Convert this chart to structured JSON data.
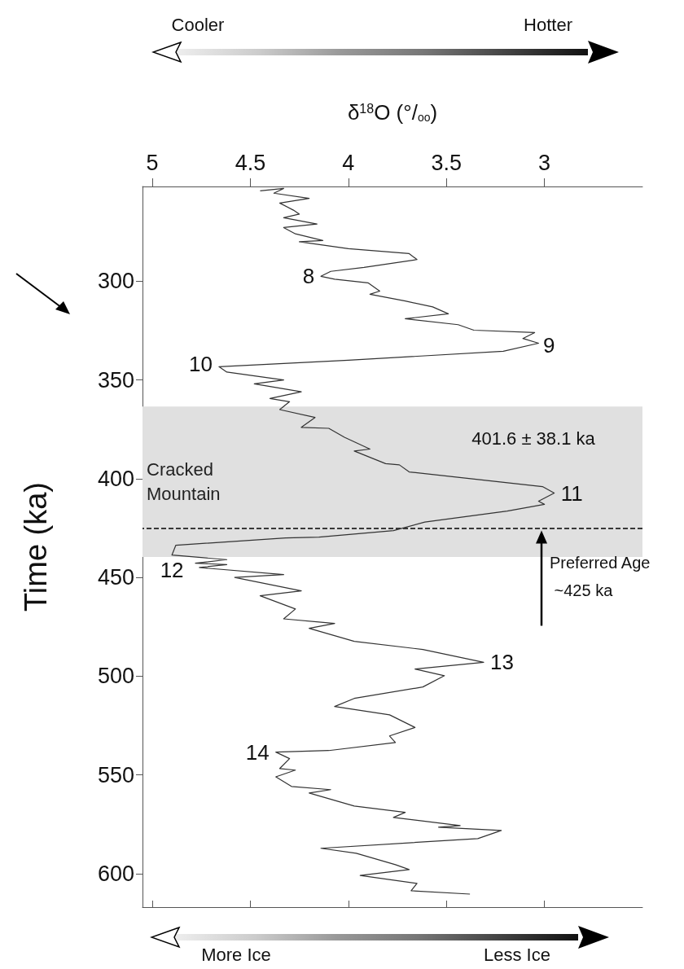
{
  "chart_data": {
    "type": "line",
    "xlabel": "δ$^{18}$O (°/$_{oo}$)",
    "ylabel": "Time (ka)",
    "xlim": [
      5.05,
      2.5
    ],
    "xticks": [
      5,
      4.5,
      4,
      3.5,
      3
    ],
    "ylim": [
      617,
      252
    ],
    "yticks": [
      300,
      350,
      400,
      450,
      500,
      550,
      600
    ],
    "grid": false,
    "marker": "none",
    "line_style": "solid",
    "series": [
      {
        "color": "#333333",
        "x": [
          4.45,
          4.33,
          4.38,
          4.2,
          4.35,
          4.28,
          4.25,
          4.33,
          4.16,
          4.33,
          4.27,
          4.13,
          4.25,
          4.0,
          3.69,
          3.65,
          3.92,
          4.09,
          4.14,
          4.07,
          3.9,
          3.84,
          3.89,
          3.71,
          3.57,
          3.49,
          3.71,
          3.44,
          3.36,
          3.05,
          3.11,
          3.03,
          3.21,
          4.0,
          4.66,
          4.62,
          4.33,
          4.48,
          4.24,
          4.4,
          4.3,
          4.35,
          4.17,
          4.24,
          4.1,
          4.02,
          3.89,
          3.97,
          3.81,
          3.74,
          3.69,
          3.31,
          3.01,
          2.95,
          3.03,
          3.0,
          3.19,
          3.61,
          3.77,
          4.15,
          4.32,
          4.88,
          4.9,
          4.62,
          4.78,
          4.62,
          4.76,
          4.33,
          4.58,
          4.24,
          4.45,
          4.27,
          4.33,
          4.07,
          4.2,
          3.97,
          3.62,
          3.31,
          3.66,
          3.51,
          3.62,
          3.97,
          4.07,
          3.79,
          3.66,
          3.79,
          3.76,
          4.1,
          4.37,
          4.3,
          4.35,
          4.27,
          4.37,
          4.29,
          4.09,
          4.2,
          3.97,
          3.71,
          3.77,
          3.43,
          3.54,
          3.22,
          3.34,
          4.14,
          3.96,
          3.76,
          3.69,
          3.94,
          3.65,
          3.68,
          3.38
        ],
        "values": [
          254.2,
          253,
          255.4,
          258,
          260.4,
          264,
          266,
          267.8,
          271,
          272.8,
          276,
          279.4,
          280,
          283.5,
          286,
          289,
          293,
          295,
          297.5,
          299,
          300.8,
          305,
          306.6,
          310,
          313,
          316.5,
          319,
          322,
          324.8,
          326,
          329,
          331.4,
          335.5,
          340,
          343.3,
          346,
          350,
          352,
          356,
          359.4,
          361,
          365,
          369,
          374,
          374.5,
          379,
          385,
          386,
          392.4,
          393,
          396.6,
          400.7,
          404,
          407.3,
          411.4,
          413,
          416.4,
          422,
          426.3,
          429.6,
          430,
          433.7,
          438.7,
          441,
          442.8,
          443.5,
          445,
          448.6,
          450,
          456.8,
          459.3,
          466,
          471,
          473.3,
          475.8,
          482.4,
          486.5,
          493,
          496.4,
          499.8,
          505.5,
          511.3,
          515.4,
          519.6,
          526,
          530.3,
          533.6,
          537.7,
          538.5,
          541.8,
          546.8,
          547.6,
          551,
          555.9,
          557.5,
          559.2,
          565.8,
          569,
          571.6,
          575.7,
          576.5,
          578.2,
          582.3,
          587.2,
          589.7,
          595.5,
          598,
          601,
          605,
          608.7,
          610.4
        ]
      }
    ],
    "bands": [
      {
        "axis": "y",
        "from": 363.5,
        "to": 439.7,
        "label": "Cracked Mountain",
        "color": "#e0e0e0"
      }
    ],
    "ref_lines": [
      {
        "axis": "y",
        "value": 425,
        "label": "Preferred Age ~425 ka",
        "color": "#000000",
        "line_style": "dashed"
      }
    ],
    "annotations": [
      "Cooler",
      "Hotter",
      "More Ice",
      "Less Ice",
      "401.6 ± 38.1 ka",
      {
        "text": "8",
        "x": 4.14,
        "y": 297.5
      },
      {
        "text": "9",
        "x": 3.04,
        "y": 332.6
      },
      {
        "text": "10",
        "x": 4.66,
        "y": 342
      },
      {
        "text": "11",
        "x": 2.95,
        "y": 407.3
      },
      {
        "text": "12",
        "x": 4.9,
        "y": 439
      },
      {
        "text": "13",
        "x": 3.31,
        "y": 493
      },
      {
        "text": "14",
        "x": 4.37,
        "y": 538.5
      }
    ]
  }
}
